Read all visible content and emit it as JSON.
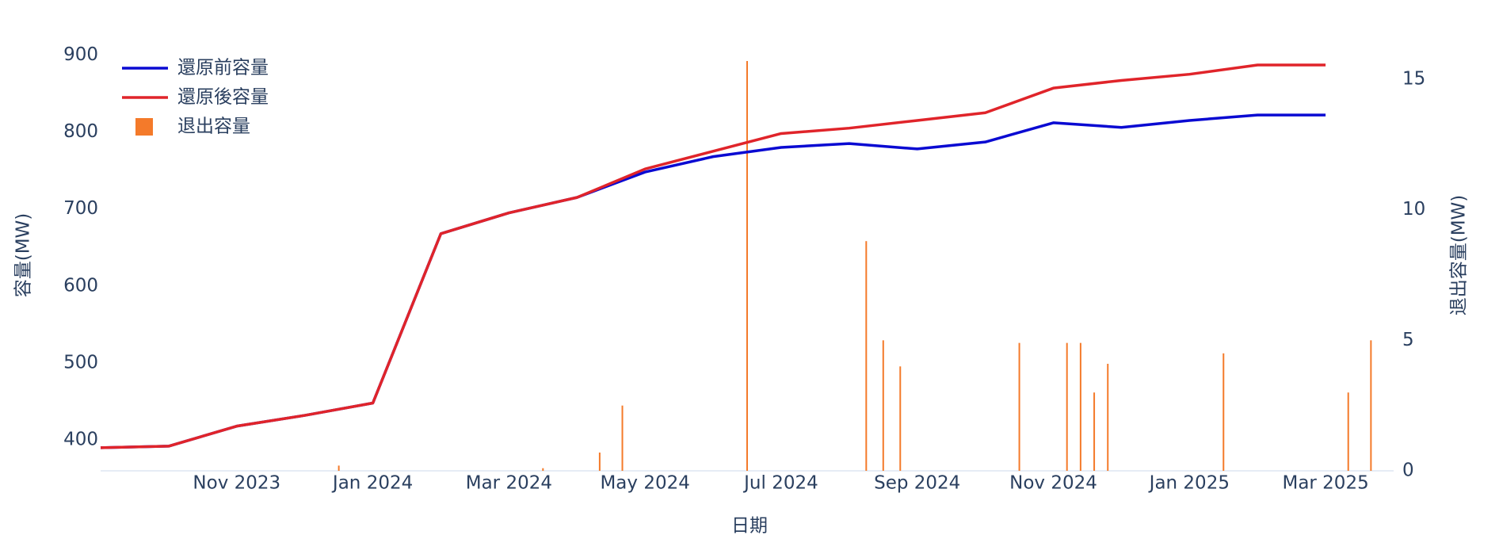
{
  "chart_data": {
    "type": "line",
    "x_label": "日期",
    "y_label": "容量(MW)",
    "y2_label": "退出容量(MW)",
    "x": [
      "2023-09",
      "2023-10",
      "2023-11",
      "2023-12",
      "2024-01",
      "2024-02",
      "2024-03",
      "2024-04",
      "2024-05",
      "2024-06",
      "2024-07",
      "2024-08",
      "2024-09",
      "2024-10",
      "2024-11",
      "2024-12",
      "2025-01",
      "2025-02",
      "2025-03"
    ],
    "series": [
      {
        "name": "還原前容量",
        "color": "#0a0ad2",
        "values": [
          390,
          392,
          418,
          432,
          448,
          668,
          695,
          715,
          748,
          768,
          780,
          785,
          778,
          787,
          812,
          806,
          815,
          822,
          822
        ]
      },
      {
        "name": "還原後容量",
        "color": "#e0242a",
        "values": [
          390,
          392,
          418,
          432,
          448,
          668,
          695,
          715,
          752,
          775,
          798,
          805,
          815,
          825,
          857,
          867,
          875,
          887,
          887
        ]
      }
    ],
    "bars": {
      "name": "退出容量",
      "color": "#f47a2a",
      "axis": "y2",
      "x": [
        "2023-12",
        "2024-03",
        "2024-04",
        "2024-04",
        "2024-06",
        "2024-08",
        "2024-08",
        "2024-08",
        "2024-10",
        "2024-11",
        "2024-11",
        "2024-11",
        "2024-11",
        "2025-01",
        "2025-03",
        "2025-03"
      ],
      "values": [
        0.2,
        0.1,
        0.7,
        2.5,
        15.7,
        8.8,
        5.0,
        4.0,
        4.9,
        4.9,
        4.9,
        3.0,
        4.1,
        4.5,
        3.0,
        5.0
      ]
    },
    "xlim": [
      "2023-09",
      "2025-04"
    ],
    "xticks": [
      {
        "value": "2023-11",
        "label": "Nov 2023"
      },
      {
        "value": "2024-01",
        "label": "Jan 2024"
      },
      {
        "value": "2024-03",
        "label": "Mar 2024"
      },
      {
        "value": "2024-05",
        "label": "May 2024"
      },
      {
        "value": "2024-07",
        "label": "Jul 2024"
      },
      {
        "value": "2024-09",
        "label": "Sep 2024"
      },
      {
        "value": "2024-11",
        "label": "Nov 2024"
      },
      {
        "value": "2025-01",
        "label": "Jan 2025"
      },
      {
        "value": "2025-03",
        "label": "Mar 2025"
      }
    ],
    "ylim": [
      360,
      921
    ],
    "yticks": [
      400,
      500,
      600,
      700,
      800,
      900
    ],
    "y2lim": [
      0,
      16.55
    ],
    "y2ticks": [
      0,
      5,
      10,
      15
    ],
    "legend": "top-left"
  }
}
